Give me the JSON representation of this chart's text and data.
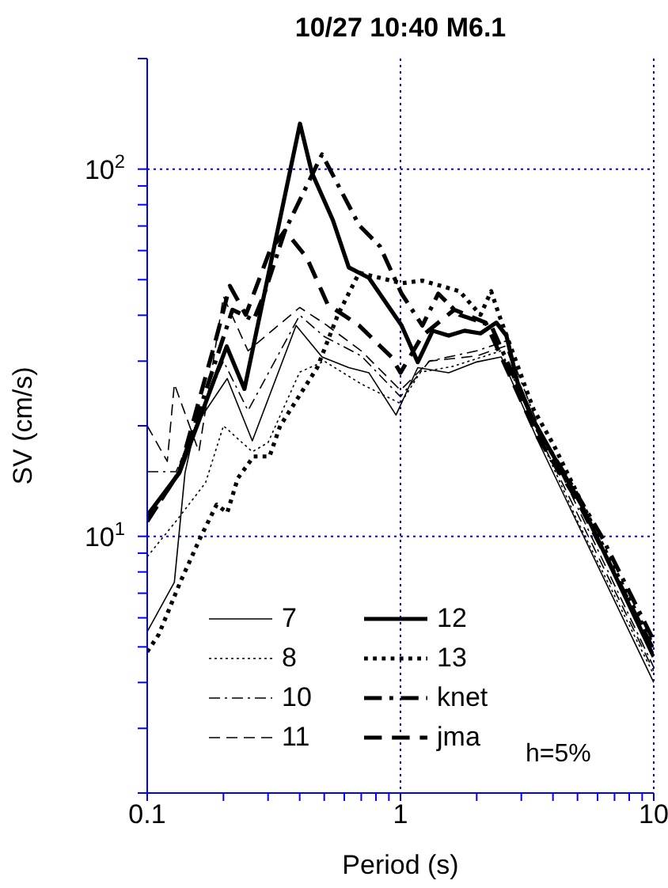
{
  "chart_data": {
    "type": "line",
    "title": "10/27 10:40 M6.1",
    "xlabel": "Period (s)",
    "ylabel": "SV (cm/s)",
    "log": "xy",
    "xlim": [
      0.1,
      10
    ],
    "ylim": [
      2,
      200
    ],
    "xticks": [
      0.1,
      {
        "value": 0.2,
        "label": null
      },
      {
        "value": 0.3,
        "label": null
      },
      {
        "value": 0.4,
        "label": null
      },
      {
        "value": 0.5,
        "label": null
      },
      {
        "value": 0.6,
        "label": null
      },
      {
        "value": 0.7,
        "label": null
      },
      {
        "value": 0.8,
        "label": null
      },
      {
        "value": 0.9,
        "label": null
      },
      1,
      {
        "value": 2,
        "label": null
      },
      {
        "value": 3,
        "label": null
      },
      {
        "value": 4,
        "label": null
      },
      {
        "value": 5,
        "label": null
      },
      {
        "value": 6,
        "label": null
      },
      {
        "value": 7,
        "label": null
      },
      {
        "value": 8,
        "label": null
      },
      {
        "value": 9,
        "label": null
      },
      10
    ],
    "yticks": [
      {
        "value": 2,
        "label": null
      },
      {
        "value": 3,
        "label": null
      },
      {
        "value": 4,
        "label": null
      },
      {
        "value": 5,
        "label": null
      },
      {
        "value": 6,
        "label": null
      },
      {
        "value": 7,
        "label": null
      },
      {
        "value": 8,
        "label": null
      },
      {
        "value": 9,
        "label": null
      },
      {
        "value": 10,
        "label": "10$^{1}$"
      },
      {
        "value": 20,
        "label": null
      },
      {
        "value": 30,
        "label": null
      },
      {
        "value": 40,
        "label": null
      },
      {
        "value": 50,
        "label": null
      },
      {
        "value": 60,
        "label": null
      },
      {
        "value": 70,
        "label": null
      },
      {
        "value": 80,
        "label": null
      },
      {
        "value": 90,
        "label": null
      },
      {
        "value": 100,
        "label": "10$^{2}$"
      },
      {
        "value": 200,
        "label": null
      }
    ],
    "grid": true,
    "legend": "bottom left",
    "annotations": [
      "h=5%"
    ],
    "series": [
      {
        "name": "7",
        "color": "#000000",
        "line_style": "solid",
        "x": [
          0.1,
          0.128,
          0.141,
          0.155,
          0.207,
          0.26,
          0.387,
          0.49,
          0.625,
          0.75,
          0.96,
          1.17,
          1.55,
          1.98,
          2.5,
          3.49,
          5.18,
          10
        ],
        "values": [
          5.5,
          7.5,
          14.9,
          20,
          26.9,
          18.2,
          37.5,
          30.8,
          28.8,
          27.9,
          21.4,
          28.8,
          27.9,
          29.8,
          30.8,
          18.2,
          10.3,
          4
        ]
      },
      {
        "name": "8",
        "color": "#000000",
        "line_style": "dotted",
        "x": [
          0.1,
          0.13,
          0.17,
          0.2,
          0.26,
          0.3,
          0.4,
          0.5,
          0.7,
          1,
          1.2,
          1.6,
          2.5,
          3.5,
          5,
          10
        ],
        "values": [
          8.8,
          11,
          14,
          20,
          17,
          18,
          28,
          30,
          26,
          23,
          28,
          29,
          32,
          19,
          11,
          4.2
        ]
      },
      {
        "name": "10",
        "color": "#000000",
        "line_style": "dashdot",
        "x": [
          0.1,
          0.13,
          0.2,
          0.25,
          0.4,
          0.5,
          0.7,
          1,
          1.3,
          2,
          2.6,
          3.5,
          5,
          10
        ],
        "values": [
          15,
          15,
          30,
          22,
          40,
          35,
          31,
          24,
          30,
          32,
          34,
          20,
          12,
          4.4
        ]
      },
      {
        "name": "11",
        "color": "#000000",
        "line_style": "dashed",
        "x": [
          0.1,
          0.12,
          0.128,
          0.16,
          0.2,
          0.25,
          0.4,
          0.5,
          0.7,
          1,
          1.3,
          2,
          2.6,
          3.5,
          5,
          10
        ],
        "values": [
          20,
          16,
          26,
          17,
          45,
          32,
          42,
          38,
          32,
          25,
          30,
          31,
          33,
          19,
          11.5,
          4.3
        ]
      },
      {
        "name": "12",
        "color": "#000000",
        "line_style": "solid",
        "x": [
          0.1,
          0.134,
          0.206,
          0.242,
          0.401,
          0.447,
          0.541,
          0.625,
          0.75,
          1.01,
          1.17,
          1.34,
          1.55,
          1.79,
          2.07,
          2.39,
          2.62,
          2.9,
          3.35,
          4.05,
          5.18,
          10
        ],
        "values": [
          11.4,
          14.9,
          32.9,
          25.2,
          133,
          97.7,
          72.6,
          54,
          50.6,
          37.5,
          29.8,
          36.3,
          35.2,
          36.3,
          35.7,
          38.2,
          35.2,
          26.2,
          20.7,
          16.4,
          12.2,
          4.7
        ]
      },
      {
        "name": "13",
        "color": "#000000",
        "line_style": "dotted",
        "x": [
          0.1,
          0.111,
          0.135,
          0.163,
          0.188,
          0.207,
          0.228,
          0.263,
          0.304,
          0.335,
          0.469,
          0.566,
          0.687,
          1.01,
          1.22,
          1.71,
          2.07,
          2.28,
          2.45,
          3.35,
          4.05,
          5.9,
          10
        ],
        "values": [
          4.85,
          5.4,
          7.5,
          10,
          12.2,
          11.6,
          14.4,
          16.5,
          16.5,
          20,
          28.8,
          40.1,
          52.2,
          48.9,
          49.7,
          46.5,
          40.1,
          46.5,
          40.1,
          22.2,
          17.6,
          10.3,
          5
        ]
      },
      {
        "name": "knet",
        "color": "#000000",
        "line_style": "dashdot",
        "x": [
          0.1,
          0.134,
          0.217,
          0.263,
          0.29,
          0.35,
          0.49,
          0.687,
          0.83,
          1.01,
          1.22,
          1.41,
          1.71,
          2.28,
          3.49,
          4.68,
          6.22,
          10
        ],
        "values": [
          11,
          15,
          41.4,
          38.8,
          45.8,
          68,
          109.7,
          70.3,
          61.6,
          45.8,
          37.5,
          45.8,
          40.1,
          37.5,
          19.4,
          14,
          10,
          5.2
        ]
      },
      {
        "name": "jma",
        "color": "#000000",
        "line_style": "dashed",
        "x": [
          0.1,
          0.134,
          0.188,
          0.212,
          0.245,
          0.304,
          0.35,
          0.426,
          0.516,
          0.687,
          0.92,
          1,
          1.22,
          1.63,
          2.17,
          3.5,
          5,
          10
        ],
        "values": [
          11,
          15,
          35,
          48.1,
          40.1,
          59.6,
          68,
          57.5,
          42.8,
          37.5,
          30.8,
          27.9,
          35.2,
          41.4,
          38.2,
          18.5,
          12.5,
          4.9
        ]
      }
    ]
  }
}
